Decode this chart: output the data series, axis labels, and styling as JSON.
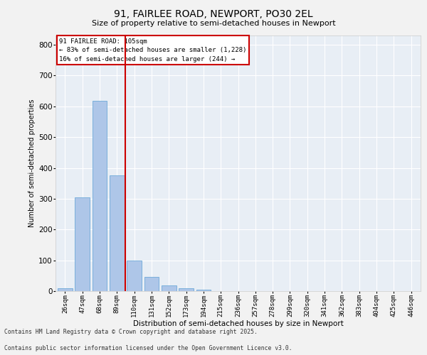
{
  "title1": "91, FAIRLEE ROAD, NEWPORT, PO30 2EL",
  "title2": "Size of property relative to semi-detached houses in Newport",
  "xlabel": "Distribution of semi-detached houses by size in Newport",
  "ylabel": "Number of semi-detached properties",
  "categories": [
    "26sqm",
    "47sqm",
    "68sqm",
    "89sqm",
    "110sqm",
    "131sqm",
    "152sqm",
    "173sqm",
    "194sqm",
    "215sqm",
    "236sqm",
    "257sqm",
    "278sqm",
    "299sqm",
    "320sqm",
    "341sqm",
    "362sqm",
    "383sqm",
    "404sqm",
    "425sqm",
    "446sqm"
  ],
  "values": [
    10,
    305,
    618,
    375,
    100,
    45,
    18,
    10,
    4,
    0,
    0,
    0,
    0,
    0,
    0,
    0,
    0,
    0,
    0,
    0,
    0
  ],
  "bar_color": "#aec6e8",
  "bar_edge_color": "#5a9fd4",
  "vline_color": "#cc0000",
  "annotation_title": "91 FAIRLEE ROAD: 105sqm",
  "annotation_line1": "← 83% of semi-detached houses are smaller (1,228)",
  "annotation_line2": "16% of semi-detached houses are larger (244) →",
  "box_color": "#cc0000",
  "ylim": [
    0,
    830
  ],
  "yticks": [
    0,
    100,
    200,
    300,
    400,
    500,
    600,
    700,
    800
  ],
  "background_color": "#e8eef5",
  "grid_color": "#ffffff",
  "footer1": "Contains HM Land Registry data © Crown copyright and database right 2025.",
  "footer2": "Contains public sector information licensed under the Open Government Licence v3.0."
}
